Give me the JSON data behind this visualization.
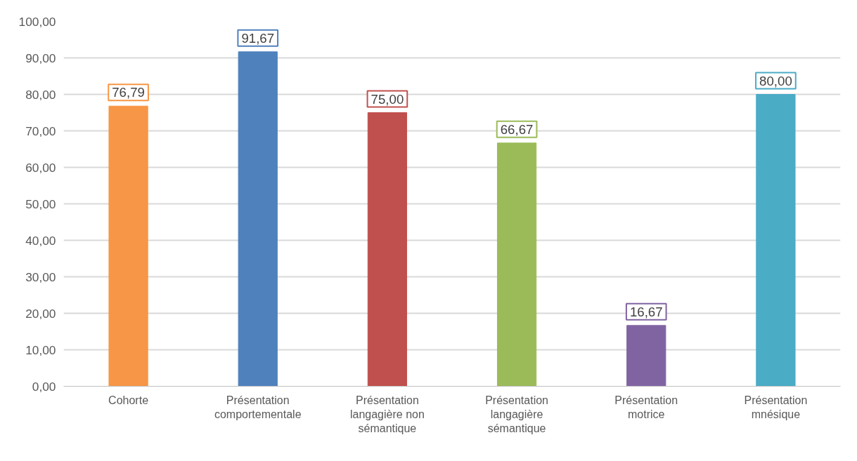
{
  "chart_data": {
    "type": "bar",
    "categories": [
      "Cohorte",
      "Présentation comportementale",
      "Présentation langagière non sémantique",
      "Présentation langagière sémantique",
      "Présentation motrice",
      "Présentation mnésique"
    ],
    "values": [
      76.79,
      91.67,
      75.0,
      66.67,
      16.67,
      80.0
    ],
    "colors": [
      "#f79646",
      "#4f81bd",
      "#c0504d",
      "#9bbb59",
      "#8064a2",
      "#4bacc6"
    ],
    "value_labels": [
      "76,79",
      "91,67",
      "75,00",
      "66,67",
      "16,67",
      "80,00"
    ],
    "ylim": [
      0,
      100
    ],
    "yticks": [
      {
        "value": 0,
        "label": "0,00"
      },
      {
        "value": 10,
        "label": "10,00"
      },
      {
        "value": 20,
        "label": "20,00"
      },
      {
        "value": 30,
        "label": "30,00"
      },
      {
        "value": 40,
        "label": "40,00"
      },
      {
        "value": 50,
        "label": "50,00"
      },
      {
        "value": 60,
        "label": "60,00"
      },
      {
        "value": 70,
        "label": "70,00"
      },
      {
        "value": 80,
        "label": "80,00"
      },
      {
        "value": 90,
        "label": "90,00"
      },
      {
        "value": 100,
        "label": "100,00"
      }
    ],
    "grid": "y"
  }
}
